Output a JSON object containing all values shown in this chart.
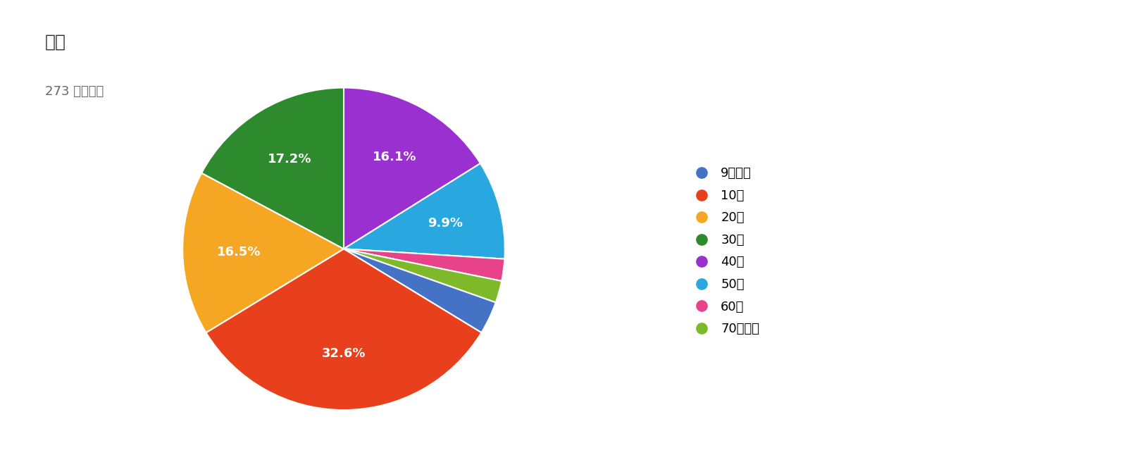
{
  "title": "年齢",
  "subtitle": "273 件の回答",
  "labels": [
    "9歳以下",
    "10代",
    "20代",
    "30代",
    "40代",
    "50代",
    "60代",
    "70代以上"
  ],
  "percentages": [
    3.3,
    32.6,
    16.5,
    17.2,
    16.1,
    9.9,
    2.2,
    2.2
  ],
  "colors": [
    "#4472C4",
    "#E8401C",
    "#F5A623",
    "#2D8A2D",
    "#9B30D0",
    "#29A8E0",
    "#E8438A",
    "#7DB928"
  ],
  "background_color": "#FFFFFF",
  "title_fontsize": 18,
  "subtitle_fontsize": 13,
  "label_fontsize": 13,
  "legend_fontsize": 13,
  "startangle": 90
}
